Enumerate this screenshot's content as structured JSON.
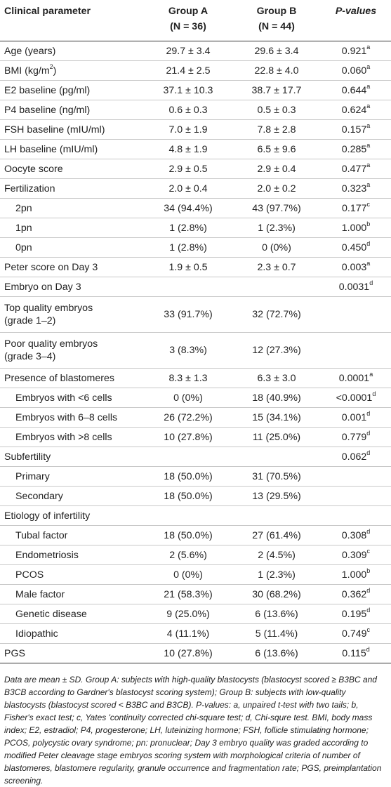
{
  "headers": {
    "col1": "Clinical parameter",
    "groupA": "Group A",
    "groupA_n": "(N = 36)",
    "groupB": "Group B",
    "groupB_n": "(N = 44)",
    "pvalues": "P-values"
  },
  "rows": [
    {
      "label": "Age (years)",
      "a": "29.7 ± 3.4",
      "b": "29.6 ± 3.4",
      "p": "0.921",
      "sup": "a"
    },
    {
      "label": "BMI (kg/m",
      "label_sup": "2",
      "label_end": ")",
      "a": "21.4 ± 2.5",
      "b": "22.8 ± 4.0",
      "p": "0.060",
      "sup": "a"
    },
    {
      "label": "E2 baseline (pg/ml)",
      "a": "37.1 ± 10.3",
      "b": "38.7 ± 17.7",
      "p": "0.644",
      "sup": "a"
    },
    {
      "label": "P4 baseline (ng/ml)",
      "a": "0.6 ± 0.3",
      "b": "0.5 ± 0.3",
      "p": "0.624",
      "sup": "a"
    },
    {
      "label": "FSH baseline (mIU/ml)",
      "a": "7.0 ± 1.9",
      "b": "7.8 ± 2.8",
      "p": "0.157",
      "sup": "a"
    },
    {
      "label": "LH baseline (mIU/ml)",
      "a": "4.8 ± 1.9",
      "b": "6.5 ± 9.6",
      "p": "0.285",
      "sup": "a"
    },
    {
      "label": "Oocyte score",
      "a": "2.9 ± 0.5",
      "b": "2.9 ± 0.4",
      "p": "0.477",
      "sup": "a"
    },
    {
      "label": "Fertilization",
      "a": "2.0 ± 0.4",
      "b": "2.0 ± 0.2",
      "p": "0.323",
      "sup": "a"
    },
    {
      "label": "2pn",
      "a": "34 (94.4%)",
      "b": "43 (97.7%)",
      "p": "0.177",
      "sup": "c"
    },
    {
      "label": "1pn",
      "a": "1 (2.8%)",
      "b": "1 (2.3%)",
      "p": "1.000",
      "sup": "b"
    },
    {
      "label": "0pn",
      "a": "1 (2.8%)",
      "b": "0 (0%)",
      "p": "0.450",
      "sup": "d"
    },
    {
      "label": "Peter score on Day 3",
      "a": "1.9 ± 0.5",
      "b": "2.3 ± 0.7",
      "p": "0.003",
      "sup": "a"
    },
    {
      "label": "Embryo on Day 3",
      "a": "",
      "b": "",
      "p": "0.0031",
      "sup": "d"
    },
    {
      "label": "Top quality embryos",
      "label2": "(grade 1–2)",
      "a": "33 (91.7%)",
      "b": "32 (72.7%)",
      "p": "",
      "sup": ""
    },
    {
      "label": "Poor quality embryos",
      "label2": "(grade 3–4)",
      "a": "3 (8.3%)",
      "b": "12 (27.3%)",
      "p": "",
      "sup": ""
    },
    {
      "label": "Presence of blastomeres",
      "a": "8.3 ± 1.3",
      "b": "6.3 ± 3.0",
      "p": "0.0001",
      "sup": "a"
    },
    {
      "label": "Embryos with <6 cells",
      "a": "0 (0%)",
      "b": "18 (40.9%)",
      "p": "<0.0001",
      "sup": "d"
    },
    {
      "label": "Embryos with 6–8 cells",
      "a": "26 (72.2%)",
      "b": "15 (34.1%)",
      "p": "0.001",
      "sup": "d"
    },
    {
      "label": "Embryos with >8 cells",
      "a": "10 (27.8%)",
      "b": "11 (25.0%)",
      "p": "0.779",
      "sup": "d"
    },
    {
      "label": "Subfertility",
      "a": "",
      "b": "",
      "p": "0.062",
      "sup": "d"
    },
    {
      "label": "Primary",
      "a": "18 (50.0%)",
      "b": "31 (70.5%)",
      "p": "",
      "sup": ""
    },
    {
      "label": "Secondary",
      "a": "18 (50.0%)",
      "b": "13 (29.5%)",
      "p": "",
      "sup": ""
    },
    {
      "label": "Etiology of infertility",
      "a": "",
      "b": "",
      "p": "",
      "sup": ""
    },
    {
      "label": "Tubal factor",
      "a": "18 (50.0%)",
      "b": "27 (61.4%)",
      "p": "0.308",
      "sup": "d"
    },
    {
      "label": "Endometriosis",
      "a": "2 (5.6%)",
      "b": "2 (4.5%)",
      "p": "0.309",
      "sup": "c"
    },
    {
      "label": "PCOS",
      "a": "0 (0%)",
      "b": "1 (2.3%)",
      "p": "1.000",
      "sup": "b"
    },
    {
      "label": "Male factor",
      "a": "21 (58.3%)",
      "b": "30 (68.2%)",
      "p": "0.362",
      "sup": "d"
    },
    {
      "label": "Genetic disease",
      "a": "9 (25.0%)",
      "b": "6 (13.6%)",
      "p": "0.195",
      "sup": "d"
    },
    {
      "label": "Idiopathic",
      "a": "4 (11.1%)",
      "b": "5 (11.4%)",
      "p": "0.749",
      "sup": "c"
    },
    {
      "label": "PGS",
      "a": "10 (27.8%)",
      "b": "6 (13.6%)",
      "p": "0.115",
      "sup": "d"
    }
  ],
  "footnote": "Data are mean ± SD. Group A: subjects with high-quality blastocysts (blastocyst scored ≥ B3BC and B3CB according to Gardner's blastocyst scoring system); Group B: subjects with low-quality blastocysts (blastocyst scored < B3BC and B3CB). P-values: a, unpaired t-test with two tails; b, Fisher's exact test; c, Yates 'continuity corrected chi-square test; d, Chi-squre test. BMI, body mass index; E2, estradiol; P4, progesterone; LH, luteinizing hormone; FSH, follicle stimulating hormone; PCOS, polycystic ovary syndrome; pn: pronuclear; Day 3 embryo quality was graded according to modified Peter cleavage stage embryos scoring system with morphological criteria of number of blastomeres, blastomere regularity, granule occurrence and fragmentation rate; PGS, preimplantation screening."
}
